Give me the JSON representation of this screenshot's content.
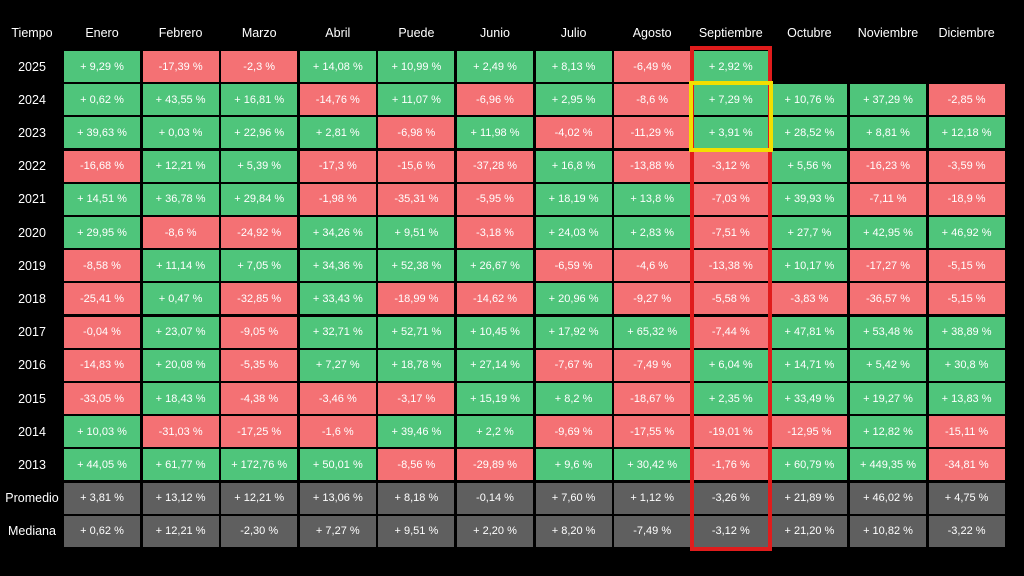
{
  "chart_data": {
    "type": "table",
    "corner_label": "Tiempo",
    "columns": [
      "Enero",
      "Febrero",
      "Marzo",
      "Abril",
      "Puede",
      "Junio",
      "Julio",
      "Agosto",
      "Septiembre",
      "Octubre",
      "Noviembre",
      "Diciembre"
    ],
    "rows": [
      {
        "label": "2025",
        "values": [
          9.29,
          -17.39,
          -2.3,
          14.08,
          10.99,
          2.49,
          8.13,
          -6.49,
          2.92,
          null,
          null,
          null
        ],
        "display": [
          "+ 9,29 %",
          "-17,39 %",
          "-2,3 %",
          "+ 14,08 %",
          "+ 10,99 %",
          "+ 2,49 %",
          "+ 8,13 %",
          "-6,49 %",
          "+ 2,92 %",
          "",
          "",
          ""
        ]
      },
      {
        "label": "2024",
        "values": [
          0.62,
          43.55,
          16.81,
          -14.76,
          11.07,
          -6.96,
          2.95,
          -8.6,
          7.29,
          10.76,
          37.29,
          -2.85
        ],
        "display": [
          "+ 0,62 %",
          "+ 43,55 %",
          "+ 16,81 %",
          "-14,76 %",
          "+ 11,07 %",
          "-6,96 %",
          "+ 2,95 %",
          "-8,6 %",
          "+ 7,29 %",
          "+ 10,76 %",
          "+ 37,29 %",
          "-2,85 %"
        ]
      },
      {
        "label": "2023",
        "values": [
          39.63,
          0.03,
          22.96,
          2.81,
          -6.98,
          11.98,
          -4.02,
          -11.29,
          3.91,
          28.52,
          8.81,
          12.18
        ],
        "display": [
          "+ 39,63 %",
          "+ 0,03 %",
          "+ 22,96 %",
          "+ 2,81 %",
          "-6,98 %",
          "+ 11,98 %",
          "-4,02 %",
          "-11,29 %",
          "+ 3,91 %",
          "+ 28,52 %",
          "+ 8,81 %",
          "+ 12,18 %"
        ]
      },
      {
        "label": "2022",
        "values": [
          -16.68,
          12.21,
          5.39,
          -17.3,
          -15.6,
          -37.28,
          16.8,
          -13.88,
          -3.12,
          5.56,
          -16.23,
          -3.59
        ],
        "display": [
          "-16,68 %",
          "+ 12,21 %",
          "+ 5,39 %",
          "-17,3 %",
          "-15,6 %",
          "-37,28 %",
          "+ 16,8 %",
          "-13,88 %",
          "-3,12 %",
          "+ 5,56 %",
          "-16,23 %",
          "-3,59 %"
        ]
      },
      {
        "label": "2021",
        "values": [
          14.51,
          36.78,
          29.84,
          -1.98,
          -35.31,
          -5.95,
          18.19,
          13.8,
          -7.03,
          39.93,
          -7.11,
          -18.9
        ],
        "display": [
          "+ 14,51 %",
          "+ 36,78 %",
          "+ 29,84 %",
          "-1,98 %",
          "-35,31 %",
          "-5,95 %",
          "+ 18,19 %",
          "+ 13,8 %",
          "-7,03 %",
          "+ 39,93 %",
          "-7,11 %",
          "-18,9 %"
        ]
      },
      {
        "label": "2020",
        "values": [
          29.95,
          -8.6,
          -24.92,
          34.26,
          9.51,
          -3.18,
          24.03,
          2.83,
          -7.51,
          27.7,
          42.95,
          46.92
        ],
        "display": [
          "+ 29,95 %",
          "-8,6 %",
          "-24,92 %",
          "+ 34,26 %",
          "+ 9,51 %",
          "-3,18 %",
          "+ 24,03 %",
          "+ 2,83 %",
          "-7,51 %",
          "+ 27,7 %",
          "+ 42,95 %",
          "+ 46,92 %"
        ]
      },
      {
        "label": "2019",
        "values": [
          -8.58,
          11.14,
          7.05,
          34.36,
          52.38,
          26.67,
          -6.59,
          -4.6,
          -13.38,
          10.17,
          -17.27,
          -5.15
        ],
        "display": [
          "-8,58 %",
          "+ 11,14 %",
          "+ 7,05 %",
          "+ 34,36 %",
          "+ 52,38 %",
          "+ 26,67 %",
          "-6,59 %",
          "-4,6 %",
          "-13,38 %",
          "+ 10,17 %",
          "-17,27 %",
          "-5,15 %"
        ]
      },
      {
        "label": "2018",
        "values": [
          -25.41,
          0.47,
          -32.85,
          33.43,
          -18.99,
          -14.62,
          20.96,
          -9.27,
          -5.58,
          -3.83,
          -36.57,
          -5.15
        ],
        "display": [
          "-25,41 %",
          "+ 0,47 %",
          "-32,85 %",
          "+ 33,43 %",
          "-18,99 %",
          "-14,62 %",
          "+ 20,96 %",
          "-9,27 %",
          "-5,58 %",
          "-3,83 %",
          "-36,57 %",
          "-5,15 %"
        ]
      },
      {
        "label": "2017",
        "values": [
          -0.04,
          23.07,
          -9.05,
          32.71,
          52.71,
          10.45,
          17.92,
          65.32,
          -7.44,
          47.81,
          53.48,
          38.89
        ],
        "display": [
          "-0,04 %",
          "+ 23,07 %",
          "-9,05 %",
          "+ 32,71 %",
          "+ 52,71 %",
          "+ 10,45 %",
          "+ 17,92 %",
          "+ 65,32 %",
          "-7,44 %",
          "+ 47,81 %",
          "+ 53,48 %",
          "+ 38,89 %"
        ]
      },
      {
        "label": "2016",
        "values": [
          -14.83,
          20.08,
          -5.35,
          7.27,
          18.78,
          27.14,
          -7.67,
          -7.49,
          6.04,
          14.71,
          5.42,
          30.8
        ],
        "display": [
          "-14,83 %",
          "+ 20,08 %",
          "-5,35 %",
          "+ 7,27 %",
          "+ 18,78 %",
          "+ 27,14 %",
          "-7,67 %",
          "-7,49 %",
          "+ 6,04 %",
          "+ 14,71 %",
          "+ 5,42 %",
          "+ 30,8 %"
        ]
      },
      {
        "label": "2015",
        "values": [
          -33.05,
          18.43,
          -4.38,
          -3.46,
          -3.17,
          15.19,
          8.2,
          -18.67,
          2.35,
          33.49,
          19.27,
          13.83
        ],
        "display": [
          "-33,05 %",
          "+ 18,43 %",
          "-4,38 %",
          "-3,46 %",
          "-3,17 %",
          "+ 15,19 %",
          "+ 8,2 %",
          "-18,67 %",
          "+ 2,35 %",
          "+ 33,49 %",
          "+ 19,27 %",
          "+ 13,83 %"
        ]
      },
      {
        "label": "2014",
        "values": [
          10.03,
          -31.03,
          -17.25,
          -1.6,
          39.46,
          2.2,
          -9.69,
          -17.55,
          -19.01,
          -12.95,
          12.82,
          -15.11
        ],
        "display": [
          "+ 10,03 %",
          "-31,03 %",
          "-17,25 %",
          "-1,6 %",
          "+ 39,46 %",
          "+ 2,2 %",
          "-9,69 %",
          "-17,55 %",
          "-19,01 %",
          "-12,95 %",
          "+ 12,82 %",
          "-15,11 %"
        ]
      },
      {
        "label": "2013",
        "values": [
          44.05,
          61.77,
          172.76,
          50.01,
          -8.56,
          -29.89,
          9.6,
          30.42,
          -1.76,
          60.79,
          449.35,
          -34.81
        ],
        "display": [
          "+ 44,05 %",
          "+ 61,77 %",
          "+ 172,76 %",
          "+ 50,01 %",
          "-8,56 %",
          "-29,89 %",
          "+ 9,6 %",
          "+ 30,42 %",
          "-1,76 %",
          "+ 60,79 %",
          "+ 449,35 %",
          "-34,81 %"
        ]
      }
    ],
    "summary_rows": [
      {
        "label": "Promedio",
        "values": [
          3.81,
          13.12,
          12.21,
          13.06,
          8.18,
          -0.14,
          7.6,
          1.12,
          -3.26,
          21.89,
          46.02,
          4.75
        ],
        "display": [
          "+ 3,81 %",
          "+ 13,12 %",
          "+ 12,21 %",
          "+ 13,06 %",
          "+ 8,18 %",
          "-0,14 %",
          "+ 7,60 %",
          "+ 1,12 %",
          "-3,26 %",
          "+ 21,89 %",
          "+ 46,02 %",
          "+ 4,75 %"
        ]
      },
      {
        "label": "Mediana",
        "values": [
          0.62,
          12.21,
          -2.3,
          7.27,
          9.51,
          2.2,
          8.2,
          -7.49,
          -3.12,
          21.2,
          10.82,
          -3.22
        ],
        "display": [
          "+ 0,62 %",
          "+ 12,21 %",
          "-2,30 %",
          "+ 7,27 %",
          "+ 9,51 %",
          "+ 2,20 %",
          "+ 8,20 %",
          "-7,49 %",
          "-3,12 %",
          "+ 21,20 %",
          "+ 10,82 %",
          "-3,22 %"
        ]
      }
    ],
    "highlights": [
      {
        "color": "red",
        "target": "column Septiembre"
      },
      {
        "color": "yellow",
        "target": "Septiembre 2024–2023"
      }
    ],
    "colors": {
      "positive": "#4fc57b",
      "negative": "#f47174",
      "summary": "#5f5f5f",
      "background": "#000000",
      "highlight_red": "#e01c1c",
      "highlight_yellow": "#f2df00"
    }
  }
}
